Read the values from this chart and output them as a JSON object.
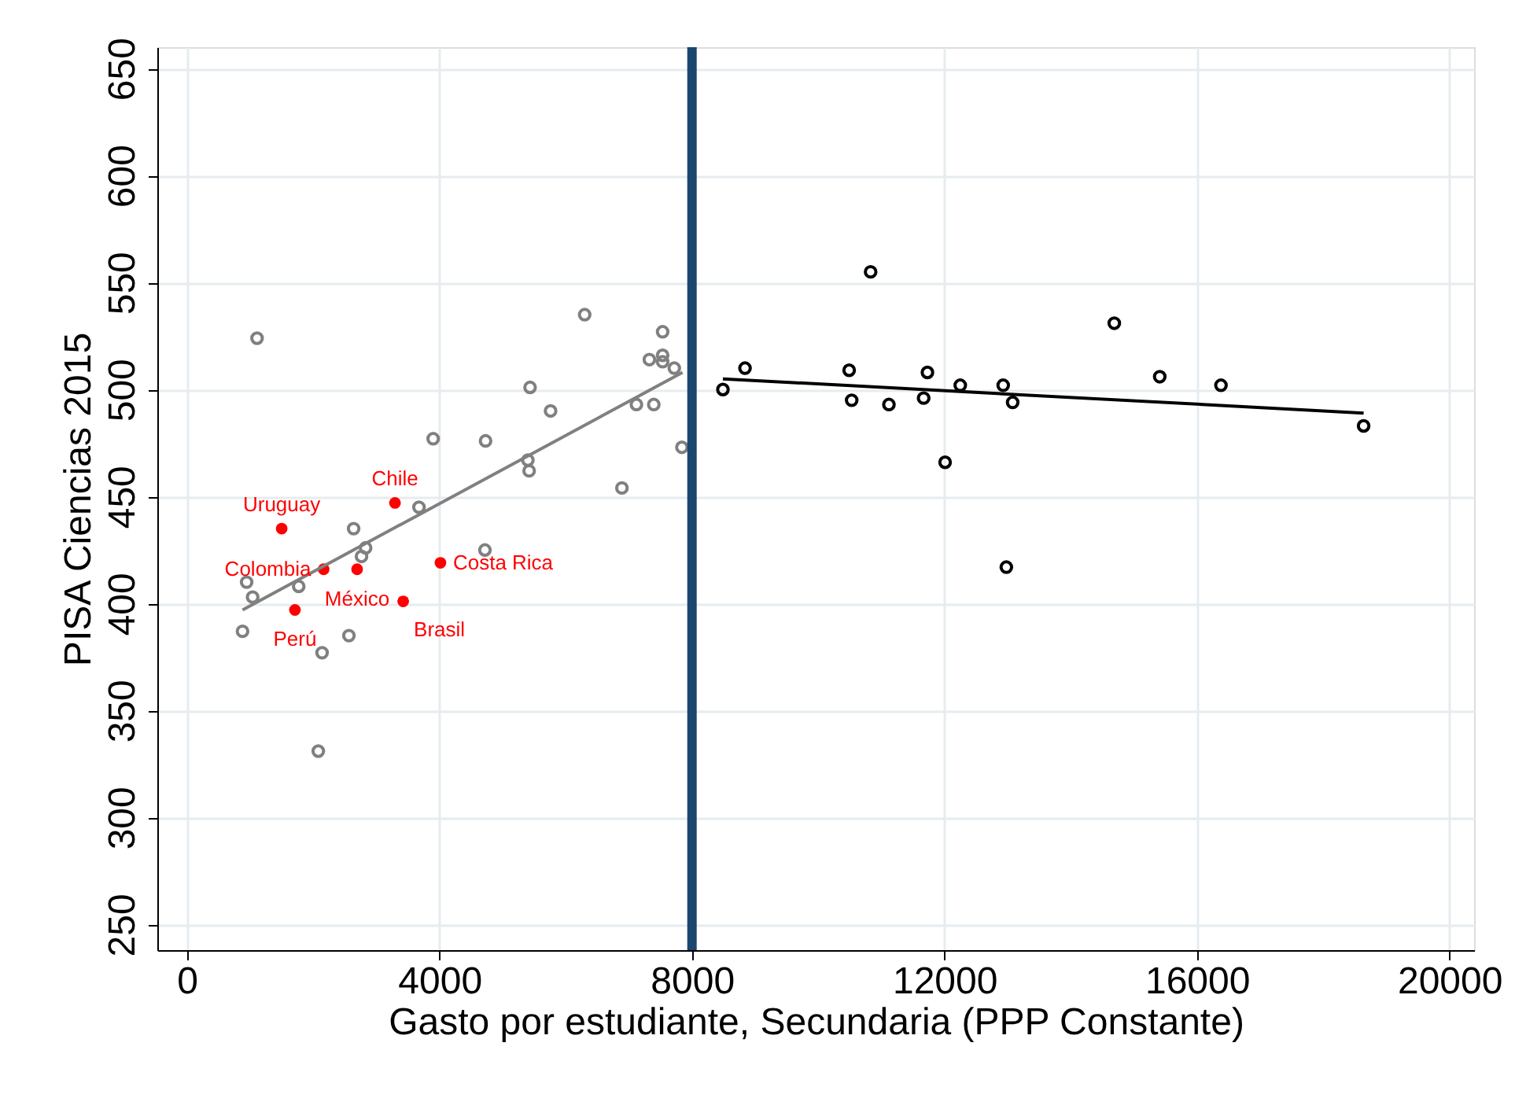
{
  "chart_data": {
    "type": "scatter",
    "xlabel": "Gasto por estudiante, Secundaria (PPP Constante)",
    "ylabel": "PISA Ciencias 2015",
    "xlim": [
      -470,
      20390
    ],
    "xticks": [
      0,
      4000,
      8000,
      12000,
      16000,
      20000
    ],
    "ylim": [
      238,
      660
    ],
    "yticks": [
      250,
      300,
      350,
      400,
      450,
      500,
      550,
      600,
      650
    ],
    "grid": true,
    "marker": "circle",
    "series": [
      {
        "color": "#808080",
        "x": [
          1110,
          6300,
          7535,
          7325,
          7535,
          7535,
          7720,
          5435,
          5760,
          7120,
          7395,
          7840,
          3900,
          4730,
          5400,
          5420,
          6890,
          3675,
          2640,
          2830,
          2765,
          4720,
          945,
          1770,
          1040,
          880,
          2565,
          2140,
          2080
        ],
        "values": [
          524,
          535,
          527,
          514,
          516,
          513,
          510,
          501,
          490,
          493,
          493,
          473,
          477,
          476,
          467,
          462,
          454,
          445,
          435,
          426,
          422,
          425,
          410,
          408,
          403,
          387,
          385,
          377,
          331
        ]
      },
      {
        "color": "#ff0000",
        "x": [
          1500,
          3295,
          2165,
          2695,
          4015,
          3425,
          1710
        ],
        "values": [
          435,
          447,
          416,
          416,
          419,
          401,
          397
        ]
      },
      {
        "color": "#000000",
        "x": [
          8490,
          8840,
          10830,
          10490,
          10530,
          11120,
          11730,
          11670,
          12250,
          12930,
          13080,
          12010,
          12980,
          14690,
          15410,
          16380,
          18640
        ],
        "values": [
          500,
          510,
          555,
          509,
          495,
          493,
          508,
          496,
          502,
          502,
          494,
          466,
          417,
          531,
          506,
          502,
          483
        ]
      },
      {
        "type": "line",
        "marker": "none",
        "line_style": "solid",
        "color": "#808080",
        "x": [
          880,
          7850
        ],
        "values": [
          397,
          508
        ]
      },
      {
        "type": "line",
        "marker": "none",
        "line_style": "solid",
        "color": "#000000",
        "x": [
          8490,
          18640
        ],
        "values": [
          505,
          489
        ]
      }
    ],
    "ref_lines": [
      {
        "axis": "x",
        "value": 8000,
        "color": "#1a476f"
      }
    ],
    "annotations": [
      {
        "text": "Chile",
        "x": 3295,
        "y": 447
      },
      {
        "text": "Uruguay",
        "x": 1500,
        "y": 435
      },
      {
        "text": "Colombia",
        "x": 2165,
        "y": 416
      },
      {
        "text": "México",
        "x": 2695,
        "y": 416
      },
      {
        "text": "Costa Rica",
        "x": 4015,
        "y": 419
      },
      {
        "text": "Brasil",
        "x": 3425,
        "y": 401
      },
      {
        "text": "Perú",
        "x": 1710,
        "y": 397
      }
    ]
  }
}
